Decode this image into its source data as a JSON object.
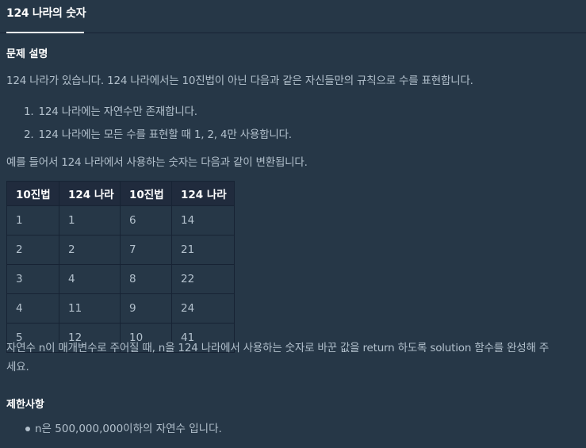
{
  "tab": {
    "title": "124 나라의 숫자"
  },
  "problem": {
    "heading": "문제 설명",
    "intro": "124 나라가 있습니다. 124 나라에서는 10진법이 아닌 다음과 같은 자신들만의 규칙으로 수를 표현합니다.",
    "rules": [
      {
        "num": "1.",
        "text": "124 나라에는 자연수만 존재합니다."
      },
      {
        "num": "2.",
        "text": "124 나라에는 모든 수를 표현할 때 1, 2, 4만 사용합니다."
      }
    ],
    "example_intro": "예를 들어서 124 나라에서 사용하는 숫자는 다음과 같이 변환됩니다.",
    "table": {
      "headers": [
        "10진법",
        "124 나라",
        "10진법",
        "124 나라"
      ],
      "rows": [
        [
          "1",
          "1",
          "6",
          "14"
        ],
        [
          "2",
          "2",
          "7",
          "21"
        ],
        [
          "3",
          "4",
          "8",
          "22"
        ],
        [
          "4",
          "11",
          "9",
          "24"
        ],
        [
          "5",
          "12",
          "10",
          "41"
        ]
      ]
    },
    "task_line1": "자연수 n이 매개변수로 주어질 때, n을 124 나라에서 사용하는 숫자로 바꾼 값을 return 하도록 solution 함수를 완성해 주",
    "task_line2": "세요."
  },
  "constraints": {
    "heading": "제한사항",
    "items": [
      "n은 500,000,000이하의 자연수 입니다."
    ]
  }
}
